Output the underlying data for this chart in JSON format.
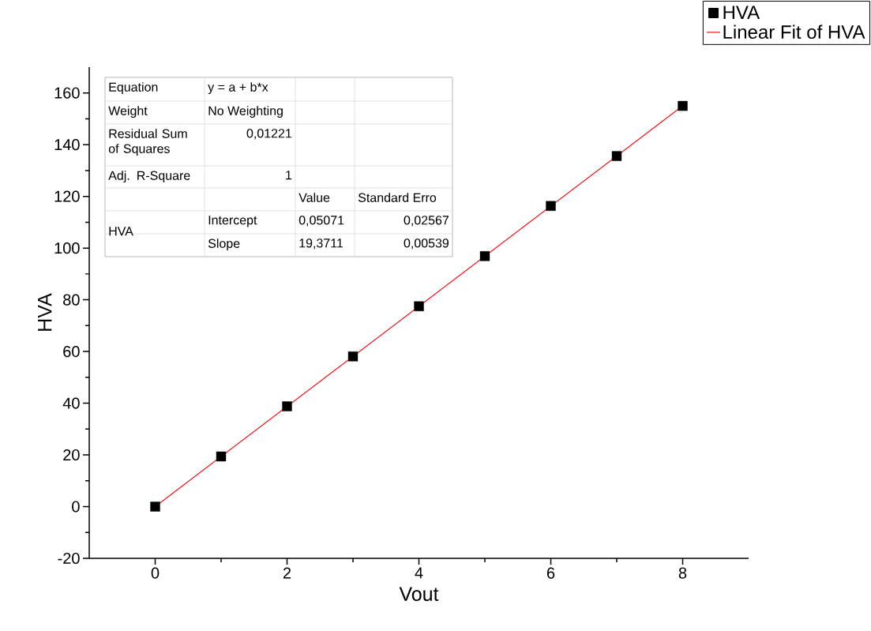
{
  "chart_data": {
    "type": "scatter",
    "xlabel": "Vout",
    "ylabel": "HVA",
    "x": [
      0,
      1,
      2,
      3,
      4,
      5,
      6,
      7,
      8
    ],
    "series": [
      {
        "name": "HVA",
        "color": "#000000",
        "marker": "square",
        "values": [
          0,
          19.4,
          38.8,
          58.1,
          77.5,
          96.9,
          116.3,
          135.6,
          155
        ]
      },
      {
        "name": "Linear Fit of HVA",
        "type": "line",
        "color": "#e8141b",
        "line_style": "solid",
        "x": [
          0,
          8
        ],
        "values": [
          0,
          155
        ]
      }
    ],
    "xlim": [
      -1,
      9
    ],
    "ylim": [
      -20,
      170
    ],
    "xticks": [
      0,
      2,
      4,
      6,
      8
    ],
    "yticks": [
      -20,
      0,
      20,
      40,
      60,
      80,
      100,
      120,
      140,
      160
    ],
    "grid": false,
    "legend": "top right",
    "annotations": [
      "Equation",
      "y = a + b*x",
      "Weight",
      "No Weighting",
      "Residual Sum of Squares",
      "0,01221",
      "Adj. R-Square",
      "1",
      "Value",
      "Standard Erro",
      "HVA",
      "Intercept",
      "0,05071",
      "0,02567",
      "Slope",
      "19,3711",
      "0,00539"
    ]
  }
}
